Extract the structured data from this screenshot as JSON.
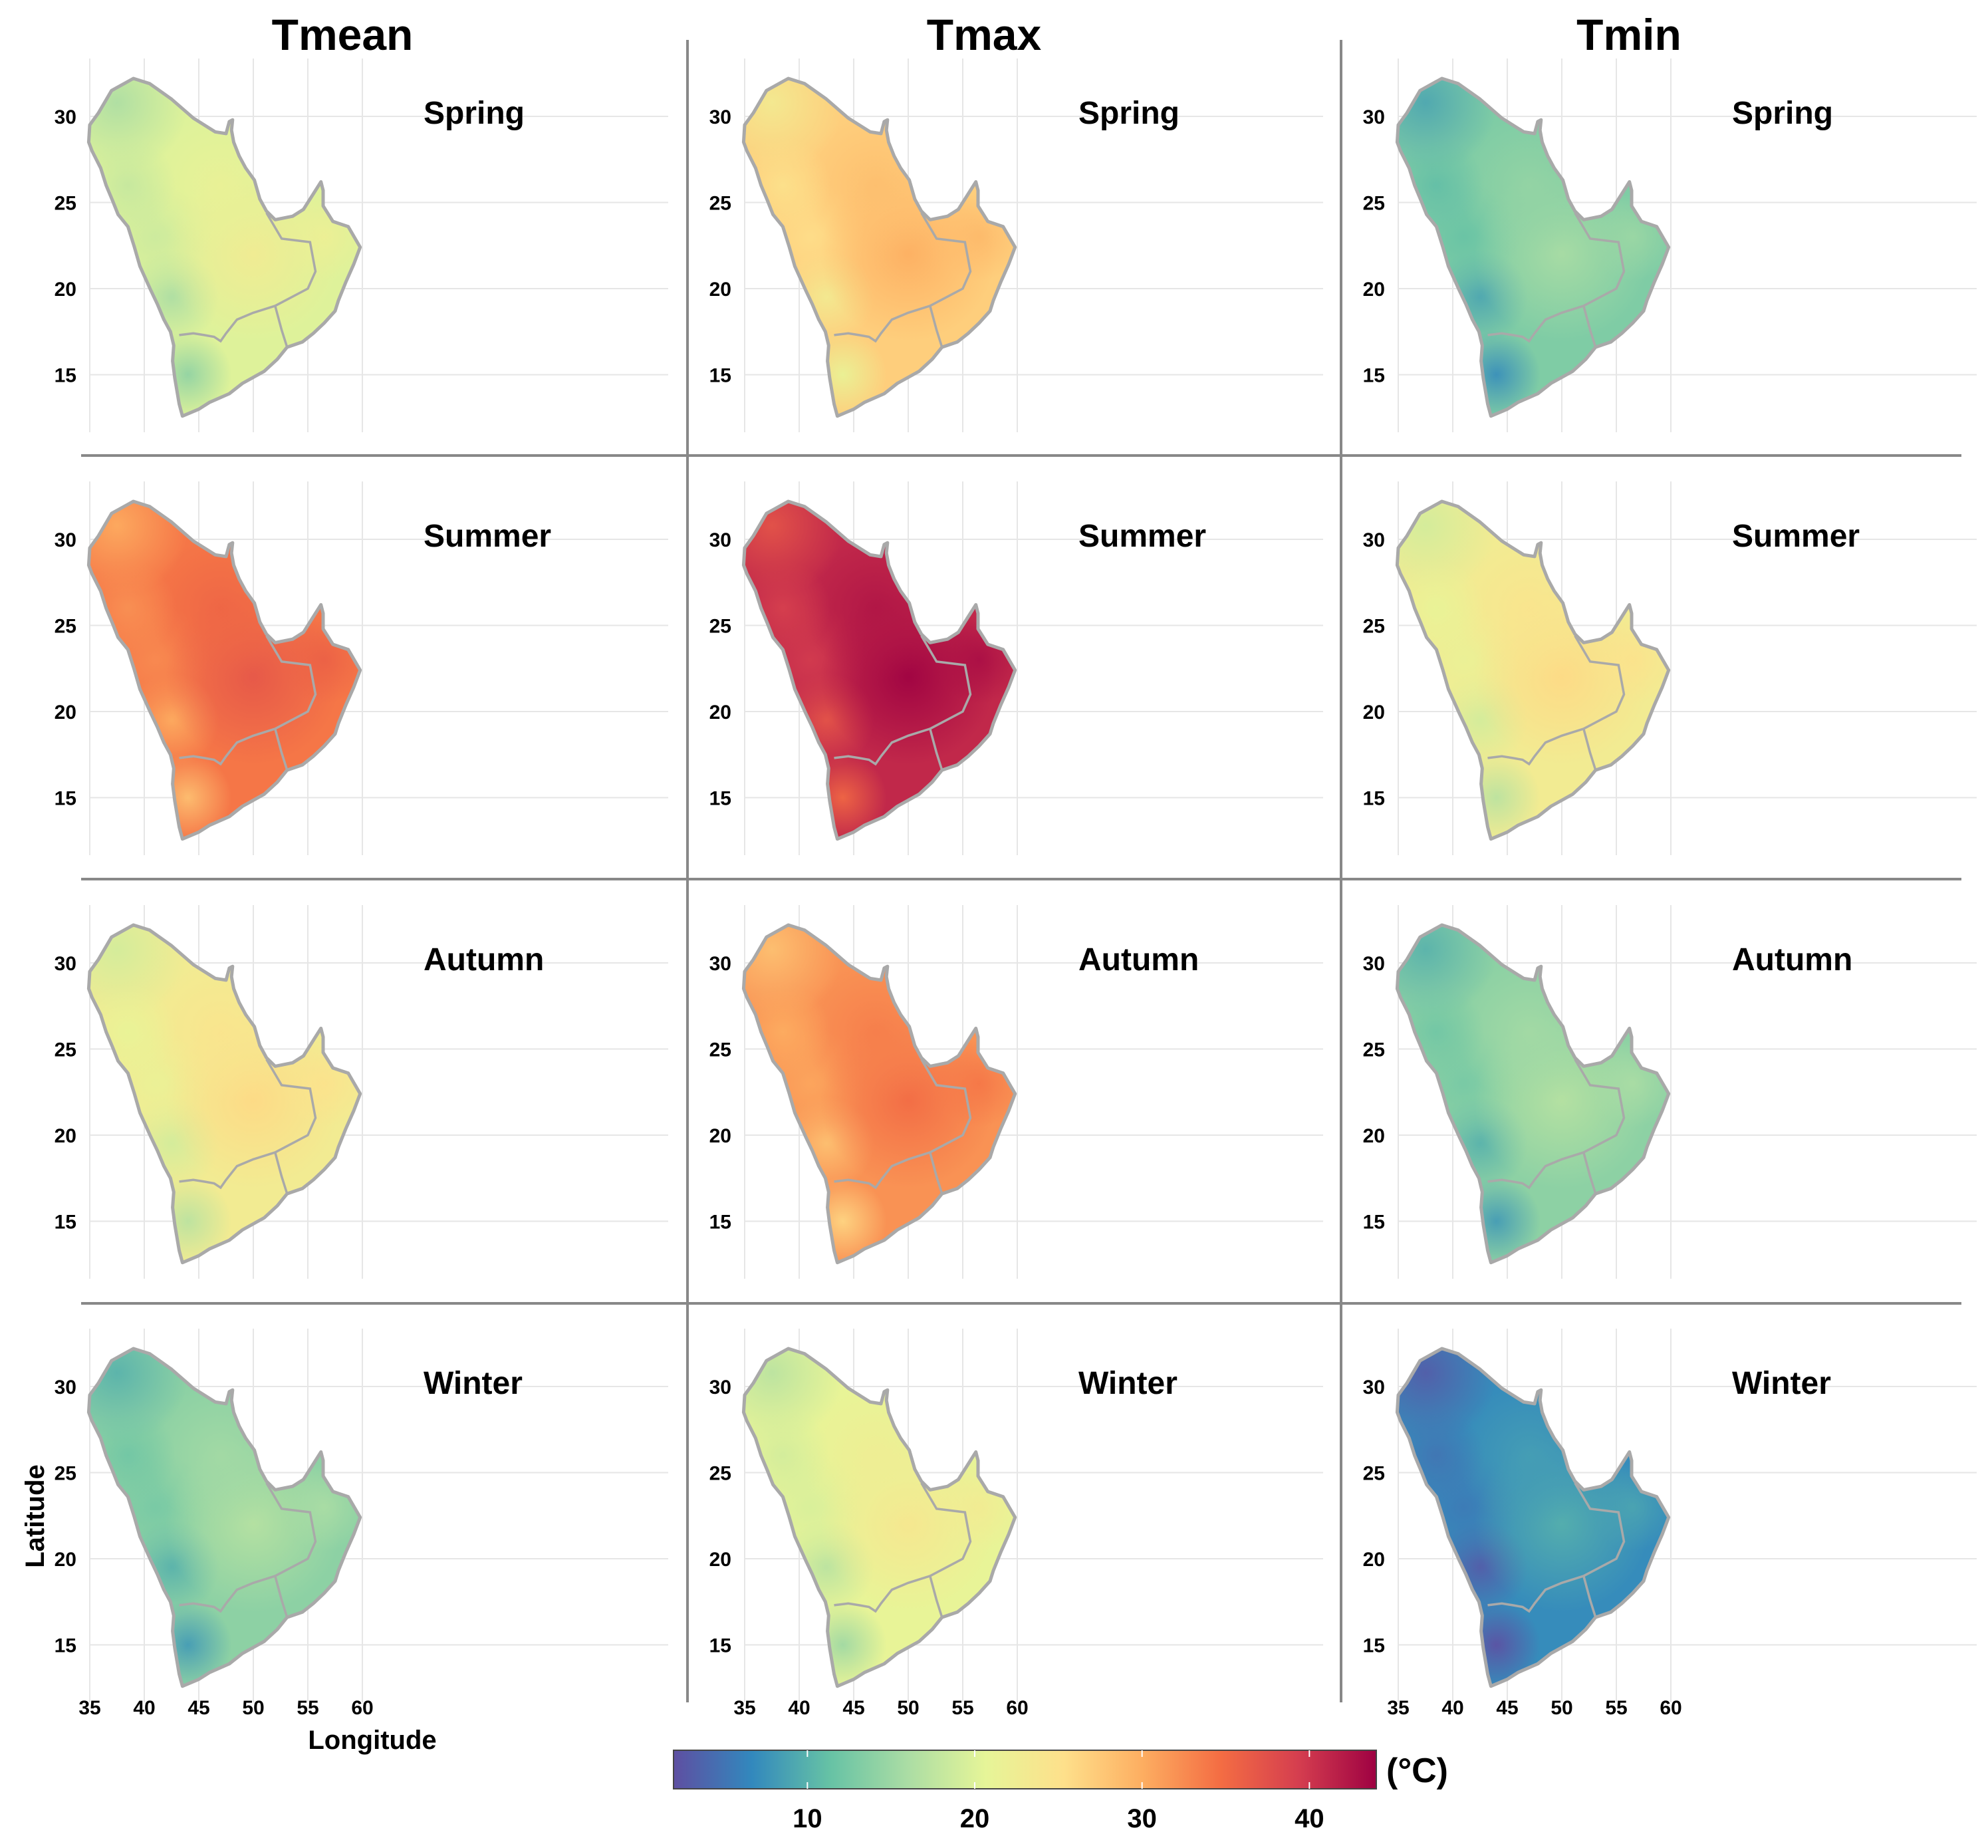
{
  "columns": [
    "Tmean",
    "Tmax",
    "Tmin"
  ],
  "seasons": [
    "Spring",
    "Summer",
    "Autumn",
    "Winter"
  ],
  "axes": {
    "x_ticks": [
      "35",
      "40",
      "45",
      "50",
      "55",
      "60"
    ],
    "y_ticks": [
      "30",
      "25",
      "20",
      "15"
    ],
    "x_label": "Longitude",
    "y_label": "Latitude"
  },
  "colorbar": {
    "unit": "(°C)",
    "ticks": [
      "10",
      "20",
      "30",
      "40"
    ],
    "range": [
      2,
      44
    ],
    "stops": [
      "#5e4fa2",
      "#3288bd",
      "#66c2a5",
      "#abdda4",
      "#e6f598",
      "#fee08b",
      "#fdae61",
      "#f46d43",
      "#d53e4f",
      "#9e0142"
    ]
  },
  "panel_levels": {
    "Tmean": [
      20,
      34,
      23,
      14
    ],
    "Tmax": [
      27,
      41,
      32,
      21
    ],
    "Tmin": [
      13,
      23,
      14,
      7
    ]
  },
  "colors": {
    "border": "#a9a9a9",
    "divider": "#888888",
    "grid": "#e6e6e6"
  }
}
